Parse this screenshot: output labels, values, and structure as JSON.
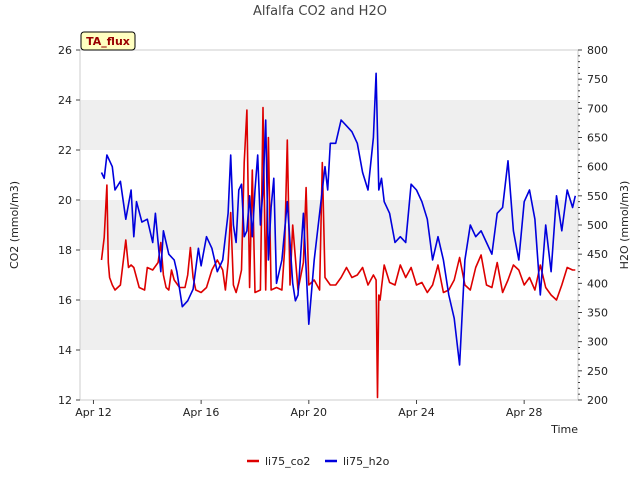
{
  "chart_data": {
    "type": "line",
    "title": "Alfalfa CO2 and H2O",
    "badge": "TA_flux",
    "xlabel": "Time",
    "ylabel_left": "CO2 (mmol/m3)",
    "ylabel_right": "H2O (mmol/m3)",
    "x_unit": "day of April (2.0 = Apr 12 00:00)",
    "xlim": [
      11.5,
      30
    ],
    "ylim_left": [
      12,
      26
    ],
    "ylim_right": [
      200,
      800
    ],
    "x_ticks": [
      {
        "value": 12,
        "label": "Apr 12"
      },
      {
        "value": 16,
        "label": "Apr 16"
      },
      {
        "value": 20,
        "label": "Apr 20"
      },
      {
        "value": 24,
        "label": "Apr 24"
      },
      {
        "value": 28,
        "label": "Apr 28"
      }
    ],
    "y_ticks_left": [
      12,
      14,
      16,
      18,
      20,
      22,
      24,
      26
    ],
    "y_ticks_right": [
      200,
      250,
      300,
      350,
      400,
      450,
      500,
      550,
      600,
      650,
      700,
      750,
      800
    ],
    "grid": "horizontal bands",
    "legend_position": "bottom",
    "colors": {
      "co2": "#dd0000",
      "h2o": "#0000dd",
      "band": "#efefef"
    },
    "series": [
      {
        "name": "li75_co2",
        "axis": "left",
        "x": [
          12.3,
          12.4,
          12.5,
          12.55,
          12.6,
          12.7,
          12.8,
          13.0,
          13.2,
          13.3,
          13.4,
          13.5,
          13.7,
          13.9,
          14.0,
          14.2,
          14.4,
          14.5,
          14.6,
          14.7,
          14.8,
          14.9,
          15.0,
          15.2,
          15.4,
          15.5,
          15.6,
          15.7,
          15.8,
          16.0,
          16.2,
          16.4,
          16.6,
          16.8,
          16.9,
          17.0,
          17.1,
          17.2,
          17.3,
          17.4,
          17.5,
          17.6,
          17.7,
          17.8,
          17.9,
          18.0,
          18.2,
          18.3,
          18.4,
          18.5,
          18.6,
          18.8,
          19.0,
          19.1,
          19.2,
          19.3,
          19.4,
          19.6,
          19.8,
          19.9,
          20.0,
          20.2,
          20.4,
          20.5,
          20.6,
          20.8,
          21.0,
          21.2,
          21.4,
          21.6,
          21.8,
          22.0,
          22.2,
          22.4,
          22.5,
          22.55,
          22.6,
          22.65,
          22.7,
          22.8,
          23.0,
          23.2,
          23.4,
          23.6,
          23.8,
          24.0,
          24.2,
          24.4,
          24.6,
          24.8,
          25.0,
          25.2,
          25.4,
          25.6,
          25.8,
          26.0,
          26.2,
          26.4,
          26.6,
          26.8,
          27.0,
          27.2,
          27.4,
          27.6,
          27.8,
          28.0,
          28.2,
          28.4,
          28.6,
          28.8,
          29.0,
          29.2,
          29.4,
          29.6,
          29.8,
          29.9
        ],
        "values": [
          17.6,
          18.5,
          20.6,
          17.5,
          16.9,
          16.6,
          16.4,
          16.6,
          18.4,
          17.3,
          17.4,
          17.3,
          16.5,
          16.4,
          17.3,
          17.2,
          17.5,
          18.3,
          17.0,
          16.5,
          16.4,
          17.2,
          16.8,
          16.5,
          16.5,
          17.0,
          18.1,
          16.9,
          16.4,
          16.3,
          16.5,
          17.2,
          17.6,
          17.2,
          16.4,
          17.5,
          19.5,
          16.6,
          16.3,
          16.7,
          17.2,
          21.5,
          23.6,
          16.5,
          21.2,
          16.3,
          16.4,
          23.7,
          16.4,
          22.5,
          16.4,
          16.5,
          16.4,
          18.0,
          22.4,
          16.6,
          19.0,
          16.4,
          17.5,
          20.5,
          16.6,
          16.8,
          16.4,
          21.5,
          16.9,
          16.6,
          16.6,
          16.9,
          17.3,
          16.9,
          17.0,
          17.3,
          16.6,
          17.0,
          16.8,
          12.1,
          16.2,
          16.0,
          16.5,
          17.4,
          16.7,
          16.6,
          17.4,
          16.9,
          17.3,
          16.6,
          16.7,
          16.3,
          16.6,
          17.4,
          16.3,
          16.4,
          16.8,
          17.7,
          16.6,
          16.4,
          17.3,
          17.8,
          16.6,
          16.5,
          17.5,
          16.3,
          16.8,
          17.4,
          17.2,
          16.6,
          16.9,
          16.4,
          17.4,
          16.5,
          16.2,
          16.0,
          16.6,
          17.3,
          17.2,
          17.2
        ]
      },
      {
        "name": "li75_h2o",
        "axis": "right",
        "x": [
          12.3,
          12.4,
          12.5,
          12.6,
          12.7,
          12.8,
          13.0,
          13.2,
          13.4,
          13.5,
          13.6,
          13.8,
          14.0,
          14.2,
          14.3,
          14.5,
          14.6,
          14.8,
          15.0,
          15.1,
          15.3,
          15.5,
          15.7,
          15.9,
          16.0,
          16.2,
          16.4,
          16.6,
          16.8,
          17.0,
          17.1,
          17.2,
          17.3,
          17.4,
          17.5,
          17.6,
          17.7,
          17.8,
          17.9,
          18.0,
          18.1,
          18.2,
          18.3,
          18.4,
          18.5,
          18.6,
          18.7,
          18.8,
          19.0,
          19.2,
          19.4,
          19.5,
          19.6,
          19.8,
          20.0,
          20.2,
          20.4,
          20.6,
          20.7,
          20.8,
          21.0,
          21.2,
          21.4,
          21.6,
          21.8,
          22.0,
          22.2,
          22.4,
          22.5,
          22.6,
          22.7,
          22.8,
          23.0,
          23.2,
          23.4,
          23.6,
          23.8,
          24.0,
          24.2,
          24.4,
          24.6,
          24.8,
          25.0,
          25.2,
          25.4,
          25.6,
          25.8,
          26.0,
          26.2,
          26.4,
          26.6,
          26.8,
          27.0,
          27.2,
          27.4,
          27.6,
          27.8,
          28.0,
          28.2,
          28.4,
          28.6,
          28.8,
          29.0,
          29.2,
          29.4,
          29.6,
          29.8,
          29.9
        ],
        "values": [
          590,
          580,
          620,
          610,
          600,
          560,
          575,
          510,
          560,
          480,
          540,
          505,
          510,
          470,
          520,
          420,
          490,
          450,
          440,
          420,
          360,
          370,
          390,
          460,
          430,
          480,
          460,
          420,
          440,
          520,
          620,
          500,
          470,
          560,
          570,
          480,
          490,
          550,
          480,
          560,
          620,
          500,
          560,
          680,
          440,
          530,
          580,
          400,
          440,
          540,
          400,
          370,
          380,
          520,
          330,
          440,
          520,
          600,
          560,
          640,
          640,
          680,
          670,
          660,
          640,
          590,
          560,
          650,
          760,
          560,
          580,
          540,
          520,
          470,
          480,
          470,
          570,
          560,
          540,
          510,
          440,
          480,
          440,
          380,
          340,
          260,
          440,
          500,
          480,
          490,
          470,
          450,
          520,
          530,
          610,
          490,
          440,
          540,
          560,
          510,
          380,
          500,
          420,
          550,
          490,
          560,
          530,
          550
        ]
      }
    ]
  }
}
